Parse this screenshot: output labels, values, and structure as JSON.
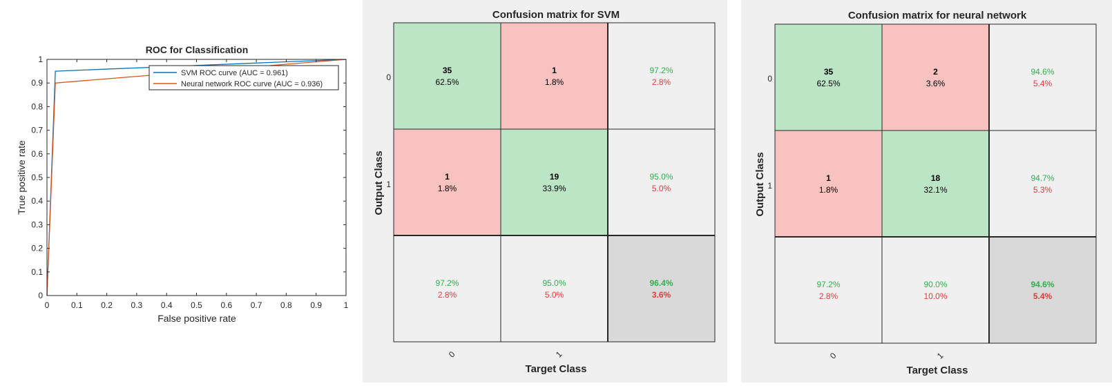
{
  "chart_data": [
    {
      "type": "line",
      "title": "ROC for Classification",
      "xlabel": "False positive rate",
      "ylabel": "True positive rate",
      "xlim": [
        0,
        1
      ],
      "ylim": [
        0,
        1
      ],
      "xticks": [
        "0",
        "0.1",
        "0.2",
        "0.3",
        "0.4",
        "0.5",
        "0.6",
        "0.7",
        "0.8",
        "0.9",
        "1"
      ],
      "yticks": [
        "0",
        "0.1",
        "0.2",
        "0.3",
        "0.4",
        "0.5",
        "0.6",
        "0.7",
        "0.8",
        "0.9",
        "1"
      ],
      "grid": false,
      "legend_position": "top-right",
      "series": [
        {
          "name": "SVM ROC curve (AUC = 0.961)",
          "color": "#0072bd",
          "x": [
            0,
            0.028,
            1
          ],
          "y": [
            0,
            0.95,
            1
          ]
        },
        {
          "name": "Neural network ROC curve (AUC = 0.936)",
          "color": "#d95319",
          "x": [
            0,
            0.028,
            1
          ],
          "y": [
            0,
            0.9,
            1
          ]
        }
      ]
    },
    {
      "type": "heatmap",
      "title": "Confusion matrix for SVM",
      "xlabel": "Target Class",
      "ylabel": "Output Class",
      "classes": [
        "0",
        "1"
      ],
      "cells": [
        [
          {
            "count": "35",
            "pct": "62.5%"
          },
          {
            "count": "1",
            "pct": "1.8%"
          }
        ],
        [
          {
            "count": "1",
            "pct": "1.8%"
          },
          {
            "count": "19",
            "pct": "33.9%"
          }
        ]
      ],
      "row_summary": [
        {
          "good": "97.2%",
          "bad": "2.8%"
        },
        {
          "good": "95.0%",
          "bad": "5.0%"
        }
      ],
      "col_summary": [
        {
          "good": "97.2%",
          "bad": "2.8%"
        },
        {
          "good": "95.0%",
          "bad": "5.0%"
        }
      ],
      "overall": {
        "good": "96.4%",
        "bad": "3.6%"
      }
    },
    {
      "type": "heatmap",
      "title": "Confusion matrix for neural network",
      "xlabel": "Target Class",
      "ylabel": "Output Class",
      "classes": [
        "0",
        "1"
      ],
      "cells": [
        [
          {
            "count": "35",
            "pct": "62.5%"
          },
          {
            "count": "2",
            "pct": "3.6%"
          }
        ],
        [
          {
            "count": "1",
            "pct": "1.8%"
          },
          {
            "count": "18",
            "pct": "32.1%"
          }
        ]
      ],
      "row_summary": [
        {
          "good": "94.6%",
          "bad": "5.4%"
        },
        {
          "good": "94.7%",
          "bad": "5.3%"
        }
      ],
      "col_summary": [
        {
          "good": "97.2%",
          "bad": "2.8%"
        },
        {
          "good": "90.0%",
          "bad": "10.0%"
        }
      ],
      "overall": {
        "good": "94.6%",
        "bad": "5.4%"
      }
    }
  ],
  "colors": {
    "correct_cell": "#bce5c5",
    "error_cell": "#f7c2bf",
    "summary_cell": "#f0f0f0",
    "overall_cell": "#d9d9d9",
    "good_text": "#2bb34a",
    "bad_text": "#e53935",
    "axis": "#262626"
  }
}
